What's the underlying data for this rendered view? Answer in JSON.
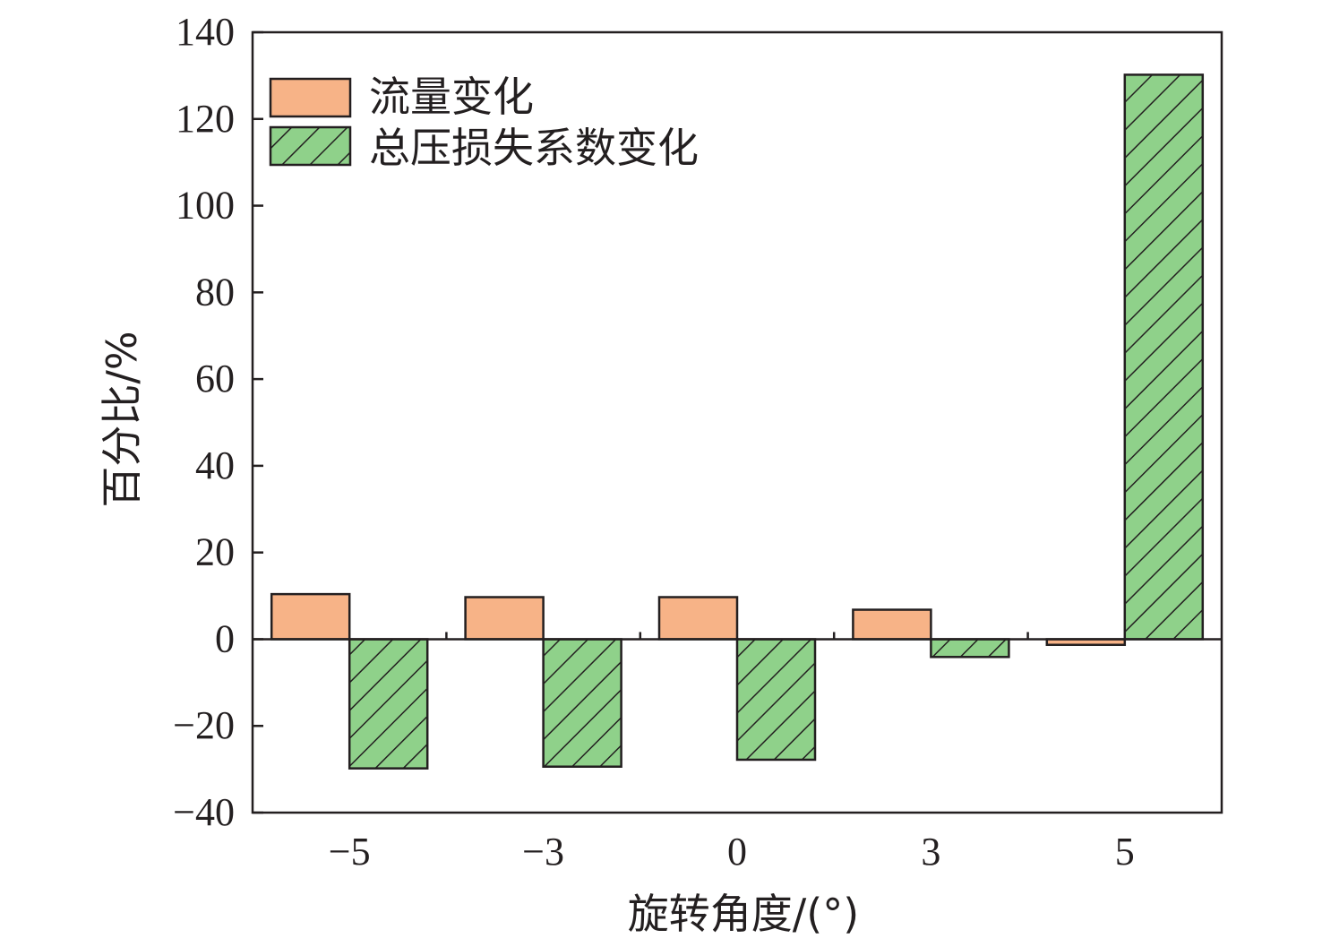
{
  "chart_data": {
    "type": "bar",
    "categories": [
      "−5",
      "−3",
      "0",
      "3",
      "5"
    ],
    "series": [
      {
        "name": "流量变化",
        "values": [
          10.4,
          9.7,
          9.7,
          6.8,
          -1.3
        ],
        "color": "#f7b387",
        "hatch": false
      },
      {
        "name": "总压损失系数变化",
        "values": [
          -29.8,
          -29.4,
          -27.8,
          -4.1,
          130.2
        ],
        "color": "#8fd18a",
        "hatch": true
      }
    ],
    "xlabel": "旋转角度/(°)",
    "ylabel": "百分比/%",
    "ylim": [
      -40,
      140
    ],
    "yticks": [
      -40,
      -20,
      0,
      20,
      40,
      60,
      80,
      100,
      120,
      140
    ],
    "ytick_labels": [
      "−40",
      "−20",
      "0",
      "20",
      "40",
      "60",
      "80",
      "100",
      "120",
      "140"
    ],
    "grid": false,
    "legend_position": "top-left"
  }
}
